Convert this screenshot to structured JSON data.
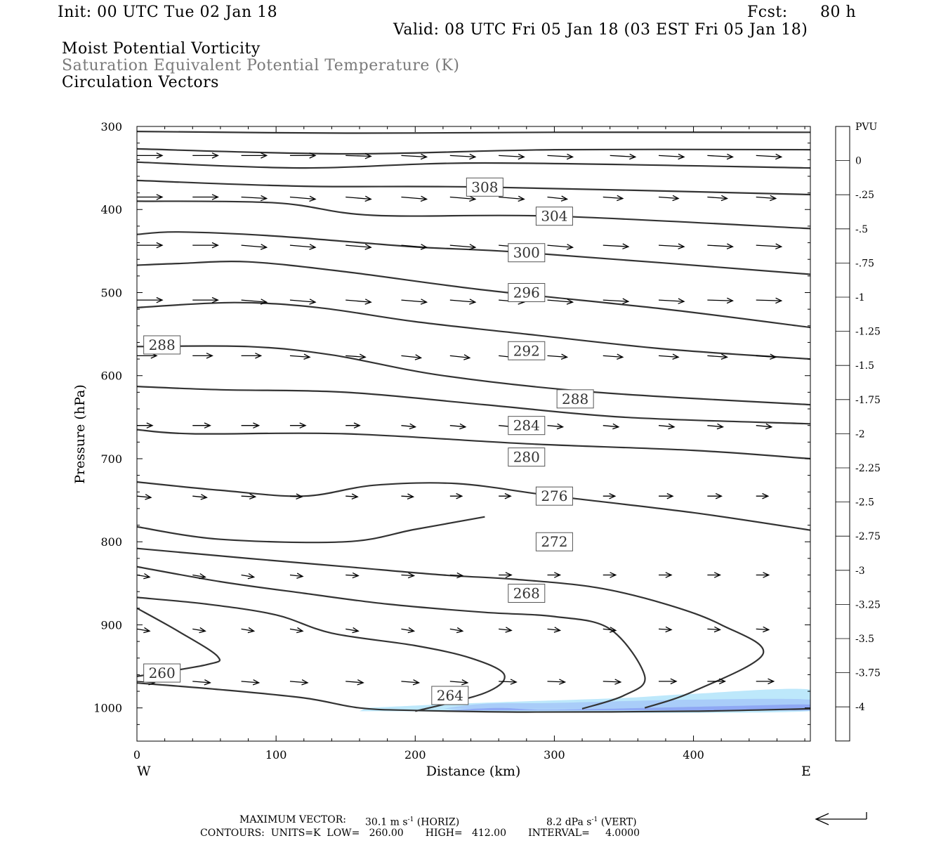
{
  "header": {
    "init": "Init: 00 UTC Tue 02 Jan 18",
    "fcst_label": "Fcst:",
    "fcst_value": "80 h",
    "valid": "Valid: 08 UTC Fri 05 Jan 18 (03 EST Fri 05 Jan 18)",
    "field1": "Moist Potential Vorticity",
    "field2": "Saturation Equivalent Potential Temperature (K)",
    "field3": "Circulation Vectors"
  },
  "footer": {
    "max_vector_label": "MAXIMUM VECTOR:",
    "horiz_value": "30.1 m s",
    "horiz_unit": "(HORIZ)",
    "vert_value": "8.2 dPa s",
    "vert_unit": "(VERT)",
    "exponent": "-1",
    "contours": "CONTOURS:  UNITS=K  LOW=   260.00       HIGH=   412.00       INTERVAL=     4.0000"
  },
  "colors": {
    "contour": "#333333",
    "vector": "#000000",
    "pv_scale": [
      "#ffffff",
      "#ffffff",
      "#b3e5fb",
      "#a6c8fa",
      "#9bbcf8",
      "#91b1f7",
      "#87a6f6",
      "#7d9cf5",
      "#7390f3",
      "#6986f2",
      "#607bf0",
      "#566fee",
      "#4c63ec",
      "#4256ea",
      "#3747ea",
      "#2a36ec",
      "#1b22ef",
      "#0000ff"
    ]
  },
  "chart_data": {
    "type": "contour",
    "title": "Moist Potential Vorticity / Saturation Equivalent Potential Temperature (K) / Circulation Vectors",
    "xlabel": "Distance (km)",
    "ylabel": "Pressure (hPa)",
    "x_range": [
      0,
      484
    ],
    "y_range": [
      1040,
      300
    ],
    "y_scale": "linear (pressure, inverted)",
    "x_ticks": [
      0,
      100,
      200,
      300,
      400
    ],
    "y_ticks": [
      300,
      400,
      500,
      600,
      700,
      800,
      900,
      1000
    ],
    "x_end_labels": {
      "left": "W",
      "right": "E"
    },
    "colorbar": {
      "title": "PVU",
      "tick_values": [
        0,
        -0.25,
        -0.5,
        -0.75,
        -1,
        -1.25,
        -1.5,
        -1.75,
        -2,
        -2.25,
        -2.5,
        -2.75,
        -3,
        -3.25,
        -3.5,
        -3.75,
        -4
      ],
      "tick_labels": [
        "0",
        "-.25",
        "-.5",
        "-.75",
        "-1",
        "-1.25",
        "-1.5",
        "-1.75",
        "-2",
        "-2.25",
        "-2.5",
        "-2.75",
        "-3",
        "-3.25",
        "-3.5",
        "-3.75",
        "-4"
      ]
    },
    "contour_lines": [
      {
        "label": null,
        "points": [
          [
            0,
            306
          ],
          [
            150,
            308
          ],
          [
            300,
            307
          ],
          [
            484,
            307
          ]
        ]
      },
      {
        "label": null,
        "points": [
          [
            0,
            327
          ],
          [
            150,
            333
          ],
          [
            300,
            328
          ],
          [
            484,
            328
          ]
        ]
      },
      {
        "label": null,
        "points": [
          [
            0,
            343
          ],
          [
            120,
            350
          ],
          [
            250,
            344
          ],
          [
            484,
            350
          ]
        ]
      },
      {
        "label": "308",
        "label_at": [
          250,
          373
        ],
        "points": [
          [
            0,
            365
          ],
          [
            120,
            372
          ],
          [
            250,
            373
          ],
          [
            484,
            382
          ]
        ]
      },
      {
        "label": "304",
        "label_at": [
          300,
          408
        ],
        "points": [
          [
            0,
            390
          ],
          [
            100,
            392
          ],
          [
            170,
            407
          ],
          [
            300,
            408
          ],
          [
            484,
            423
          ]
        ]
      },
      {
        "label": "300",
        "label_at": [
          280,
          452
        ],
        "points": [
          [
            0,
            430
          ],
          [
            30,
            427
          ],
          [
            100,
            432
          ],
          [
            200,
            445
          ],
          [
            280,
            452
          ],
          [
            484,
            478
          ]
        ]
      },
      {
        "label": "296",
        "label_at": [
          280,
          500
        ],
        "points": [
          [
            0,
            467
          ],
          [
            30,
            465
          ],
          [
            80,
            463
          ],
          [
            150,
            475
          ],
          [
            250,
            497
          ],
          [
            380,
            520
          ],
          [
            484,
            542
          ]
        ]
      },
      {
        "label": "288",
        "label_at": [
          18,
          563
        ],
        "points": [
          [
            0,
            518
          ],
          [
            70,
            512
          ],
          [
            130,
            518
          ],
          [
            200,
            535
          ],
          [
            280,
            550
          ],
          [
            380,
            568
          ],
          [
            484,
            580
          ]
        ]
      },
      {
        "label": "292",
        "label_at": [
          280,
          570
        ],
        "points": [
          [
            0,
            565
          ],
          [
            80,
            565
          ],
          [
            140,
            575
          ],
          [
            220,
            600
          ],
          [
            330,
            620
          ],
          [
            484,
            635
          ]
        ]
      },
      {
        "label": "288",
        "label_at": [
          315,
          628
        ],
        "points": [
          [
            0,
            613
          ],
          [
            60,
            617
          ],
          [
            150,
            620
          ],
          [
            250,
            635
          ],
          [
            350,
            650
          ],
          [
            484,
            658
          ]
        ]
      },
      {
        "label": "284",
        "label_at": [
          280,
          660
        ],
        "points": [
          [
            0,
            665
          ],
          [
            40,
            670
          ],
          [
            150,
            670
          ],
          [
            280,
            682
          ],
          [
            400,
            690
          ],
          [
            484,
            700
          ]
        ]
      },
      {
        "label": "280",
        "label_at": [
          280,
          698
        ],
        "points": [
          [
            0,
            728
          ],
          [
            60,
            738
          ],
          [
            120,
            745
          ],
          [
            170,
            732
          ],
          [
            230,
            730
          ],
          [
            300,
            745
          ],
          [
            400,
            765
          ],
          [
            484,
            786
          ]
        ]
      },
      {
        "label": "276",
        "label_at": [
          300,
          745
        ],
        "points": [
          [
            0,
            782
          ],
          [
            60,
            797
          ],
          [
            150,
            800
          ],
          [
            200,
            785
          ],
          [
            250,
            770
          ]
        ]
      },
      {
        "label": "272",
        "label_at": [
          300,
          800
        ],
        "points": [
          [
            0,
            808
          ],
          [
            80,
            820
          ],
          [
            150,
            830
          ],
          [
            220,
            840
          ],
          [
            270,
            845
          ],
          [
            330,
            855
          ],
          [
            380,
            875
          ],
          [
            420,
            900
          ],
          [
            450,
            935
          ],
          [
            400,
            980
          ],
          [
            365,
            1000
          ]
        ]
      },
      {
        "label": "268",
        "label_at": [
          280,
          862
        ],
        "points": [
          [
            0,
            830
          ],
          [
            60,
            848
          ],
          [
            120,
            862
          ],
          [
            180,
            875
          ],
          [
            250,
            885
          ],
          [
            300,
            890
          ],
          [
            340,
            905
          ],
          [
            365,
            962
          ],
          [
            350,
            985
          ],
          [
            320,
            1001
          ]
        ]
      },
      {
        "label": "264",
        "label_at": [
          225,
          985
        ],
        "points": [
          [
            0,
            867
          ],
          [
            50,
            875
          ],
          [
            100,
            888
          ],
          [
            140,
            910
          ],
          [
            200,
            925
          ],
          [
            240,
            940
          ],
          [
            264,
            960
          ],
          [
            250,
            982
          ],
          [
            200,
            1004
          ]
        ]
      },
      {
        "label": "260",
        "label_at": [
          18,
          958
        ],
        "points": [
          [
            0,
            962
          ],
          [
            50,
            948
          ],
          [
            58,
            938
          ],
          [
            30,
            908
          ],
          [
            0,
            880
          ]
        ]
      },
      {
        "label": null,
        "points": [
          [
            0,
            970
          ],
          [
            60,
            978
          ],
          [
            120,
            988
          ],
          [
            160,
            1000
          ],
          [
            200,
            1003
          ],
          [
            280,
            1005
          ],
          [
            400,
            1004
          ],
          [
            484,
            1001
          ]
        ]
      }
    ],
    "mpv_shading": [
      {
        "value": -0.25,
        "points": [
          [
            165,
            1000
          ],
          [
            230,
            995
          ],
          [
            280,
            992
          ],
          [
            350,
            988
          ],
          [
            400,
            983
          ],
          [
            484,
            978
          ],
          [
            484,
            1004
          ],
          [
            160,
            1004
          ]
        ]
      },
      {
        "value": -0.5,
        "points": [
          [
            220,
            1001
          ],
          [
            250,
            995
          ],
          [
            300,
            994
          ],
          [
            400,
            990
          ],
          [
            484,
            990
          ],
          [
            484,
            1000
          ],
          [
            350,
            1002
          ]
        ]
      },
      {
        "value": -0.75,
        "points": [
          [
            220,
            1003
          ],
          [
            260,
            1000
          ],
          [
            300,
            1002
          ],
          [
            420,
            998
          ],
          [
            484,
            996
          ],
          [
            484,
            1003
          ]
        ]
      }
    ],
    "vector_rows": [
      {
        "p": 335,
        "x": [
          0,
          40,
          75,
          110,
          150,
          190,
          225,
          260,
          295,
          340,
          375,
          410,
          445
        ],
        "dx": [
          36,
          36,
          36,
          36,
          36,
          36,
          36,
          36,
          36,
          36,
          36,
          36,
          36
        ],
        "dy": [
          0,
          0,
          0,
          0,
          1,
          2,
          2,
          2,
          2,
          2,
          2,
          2,
          2
        ]
      },
      {
        "p": 385,
        "x": [
          0,
          40,
          75,
          110,
          150,
          190,
          225,
          260,
          295,
          335,
          375,
          410,
          445
        ],
        "dx": [
          36,
          36,
          36,
          36,
          36,
          36,
          36,
          36,
          28,
          28,
          28,
          28,
          28
        ],
        "dy": [
          0,
          0,
          2,
          3,
          3,
          3,
          3,
          3,
          3,
          2,
          2,
          2,
          2
        ]
      },
      {
        "p": 443,
        "x": [
          0,
          40,
          75,
          110,
          150,
          190,
          225,
          260,
          295,
          335,
          375,
          410,
          445
        ],
        "dx": [
          36,
          36,
          36,
          36,
          36,
          36,
          36,
          36,
          36,
          36,
          36,
          36,
          36
        ],
        "dy": [
          0,
          0,
          3,
          3,
          3,
          3,
          3,
          3,
          3,
          2,
          2,
          2,
          2
        ]
      },
      {
        "p": 509,
        "x": [
          0,
          40,
          75,
          110,
          150,
          190,
          225,
          260,
          295,
          335,
          375,
          410,
          445
        ],
        "dx": [
          36,
          36,
          36,
          36,
          36,
          36,
          36,
          36,
          36,
          36,
          36,
          36,
          36
        ],
        "dy": [
          0,
          0,
          3,
          3,
          3,
          3,
          3,
          3,
          3,
          2,
          2,
          1,
          1
        ]
      },
      {
        "p": 576,
        "x": [
          0,
          40,
          75,
          110,
          150,
          190,
          225,
          260,
          295,
          335,
          375,
          410,
          445
        ],
        "dx": [
          28,
          28,
          28,
          28,
          28,
          28,
          28,
          28,
          28,
          28,
          28,
          28,
          28
        ],
        "dy": [
          0,
          0,
          0,
          2,
          2,
          3,
          3,
          3,
          2,
          2,
          2,
          2,
          2
        ]
      },
      {
        "p": 660,
        "x": [
          0,
          40,
          75,
          110,
          150,
          190,
          225,
          260,
          295,
          335,
          375,
          410,
          445
        ],
        "dx": [
          22,
          25,
          25,
          22,
          20,
          20,
          22,
          22,
          22,
          22,
          22,
          22,
          22
        ],
        "dy": [
          0,
          0,
          0,
          0,
          0,
          2,
          2,
          2,
          2,
          2,
          2,
          2,
          2
        ]
      },
      {
        "p": 745,
        "x": [
          0,
          40,
          75,
          110,
          150,
          190,
          225,
          260,
          295,
          335,
          375,
          410,
          445
        ],
        "dx": [
          20,
          20,
          20,
          17,
          17,
          17,
          17,
          17,
          17,
          17,
          20,
          20,
          17
        ],
        "dy": [
          2,
          2,
          1,
          1,
          1,
          1,
          0,
          0,
          0,
          0,
          0,
          0,
          0
        ]
      },
      {
        "p": 840,
        "x": [
          0,
          40,
          75,
          110,
          150,
          190,
          225,
          260,
          295,
          335,
          375,
          410,
          445
        ],
        "dx": [
          18,
          18,
          18,
          18,
          18,
          18,
          18,
          18,
          18,
          18,
          18,
          18,
          18
        ],
        "dy": [
          3,
          3,
          3,
          2,
          1,
          1,
          1,
          0,
          0,
          0,
          0,
          0,
          0
        ]
      },
      {
        "p": 905,
        "x": [
          0,
          40,
          75,
          110,
          150,
          190,
          225,
          260,
          295,
          335,
          375,
          410,
          445
        ],
        "dx": [
          18,
          18,
          18,
          18,
          18,
          18,
          18,
          18,
          18,
          18,
          18,
          18,
          18
        ],
        "dy": [
          3,
          3,
          3,
          3,
          3,
          3,
          3,
          2,
          2,
          2,
          1,
          1,
          1
        ]
      },
      {
        "p": 968,
        "x": [
          0,
          40,
          75,
          110,
          150,
          190,
          225,
          260,
          295,
          335,
          375,
          410,
          445
        ],
        "dx": [
          25,
          25,
          25,
          25,
          25,
          25,
          25,
          25,
          25,
          25,
          25,
          25,
          25
        ],
        "dy": [
          2,
          2,
          2,
          2,
          2,
          2,
          2,
          1,
          1,
          1,
          0,
          0,
          0
        ]
      }
    ]
  }
}
